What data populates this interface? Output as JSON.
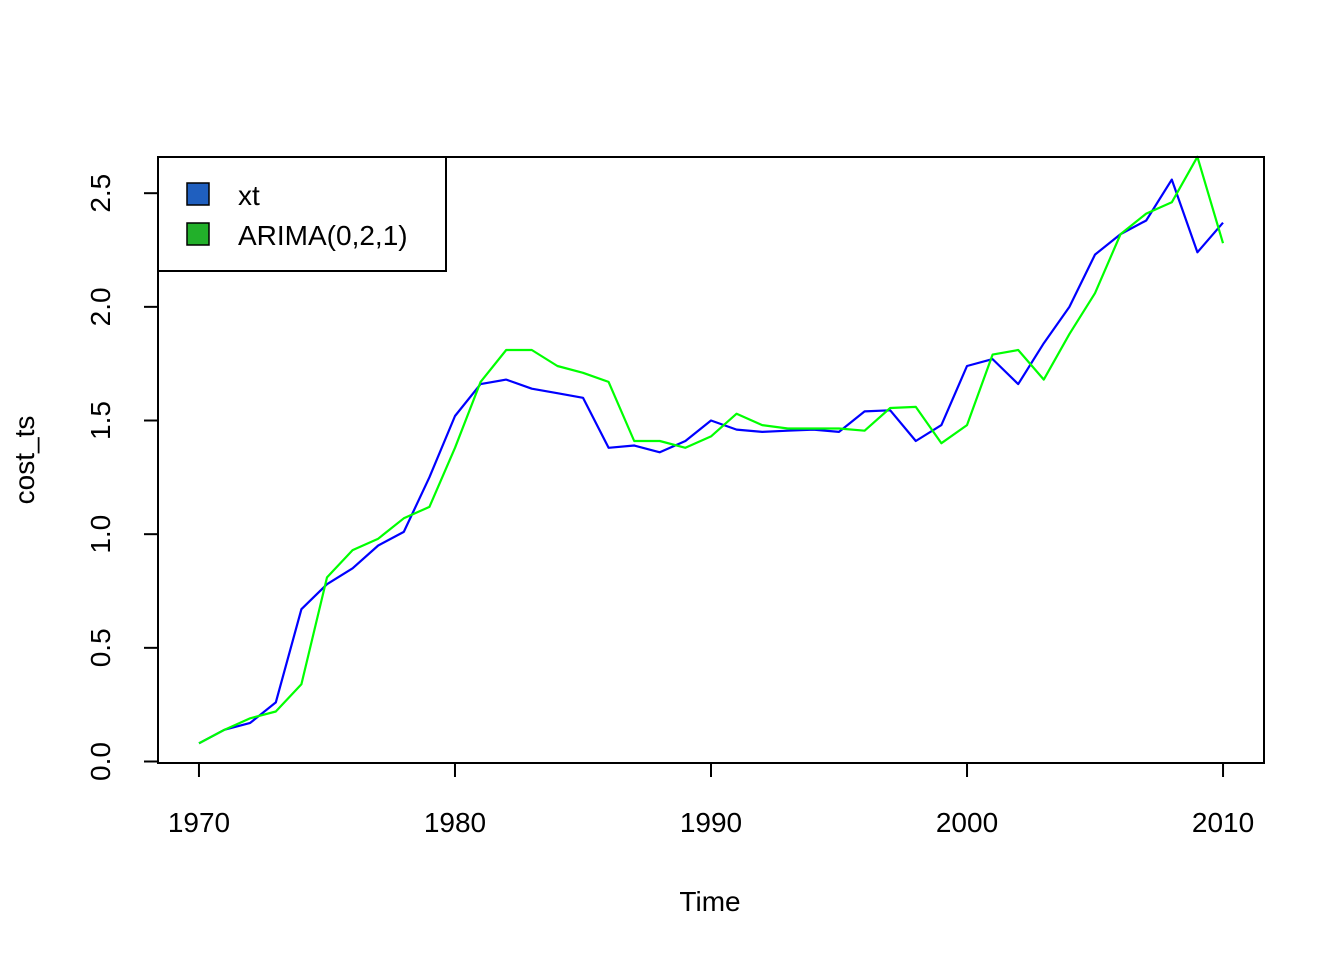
{
  "chart_data": {
    "type": "line",
    "title": "",
    "xlabel": "Time",
    "ylabel": "cost_ts",
    "xlim": [
      1968.4,
      2011.6
    ],
    "ylim": [
      -0.0066,
      2.6592
    ],
    "xticks": [
      1970,
      1980,
      1990,
      2000,
      2010
    ],
    "xtick_labels": [
      "1970",
      "1980",
      "1990",
      "2000",
      "2010"
    ],
    "yticks": [
      0.0,
      0.5,
      1.0,
      1.5,
      2.0,
      2.5
    ],
    "ytick_labels": [
      "0.0",
      "0.5",
      "1.0",
      "1.5",
      "2.0",
      "2.5"
    ],
    "grid": false,
    "legend_position": "top-left",
    "x": [
      1970,
      1971,
      1972,
      1973,
      1974,
      1975,
      1976,
      1977,
      1978,
      1979,
      1980,
      1981,
      1982,
      1983,
      1984,
      1985,
      1986,
      1987,
      1988,
      1989,
      1990,
      1991,
      1992,
      1993,
      1994,
      1995,
      1996,
      1997,
      1998,
      1999,
      2000,
      2001,
      2002,
      2003,
      2004,
      2005,
      2006,
      2007,
      2008,
      2009,
      2010
    ],
    "series": [
      {
        "name": "xt",
        "color": "#0000ff",
        "legend_color": "#1f5fbf",
        "values": [
          0.08,
          0.14,
          0.17,
          0.26,
          0.67,
          0.78,
          0.85,
          0.95,
          1.01,
          1.25,
          1.52,
          1.66,
          1.68,
          1.64,
          1.62,
          1.6,
          1.38,
          1.39,
          1.36,
          1.41,
          1.5,
          1.46,
          1.45,
          1.455,
          1.46,
          1.45,
          1.54,
          1.545,
          1.41,
          1.48,
          1.74,
          1.77,
          1.66,
          1.84,
          2.0,
          2.23,
          2.32,
          2.38,
          2.56,
          2.24,
          2.37
        ]
      },
      {
        "name": "ARIMA(0,2,1)",
        "color": "#00ff00",
        "legend_color": "#22b02a",
        "values": [
          0.08,
          0.14,
          0.19,
          0.22,
          0.34,
          0.81,
          0.93,
          0.98,
          1.07,
          1.12,
          1.38,
          1.67,
          1.81,
          1.81,
          1.74,
          1.71,
          1.67,
          1.41,
          1.41,
          1.38,
          1.43,
          1.53,
          1.48,
          1.465,
          1.465,
          1.465,
          1.455,
          1.555,
          1.56,
          1.4,
          1.48,
          1.79,
          1.81,
          1.68,
          1.88,
          2.06,
          2.32,
          2.41,
          2.46,
          2.66,
          2.28
        ]
      }
    ]
  }
}
